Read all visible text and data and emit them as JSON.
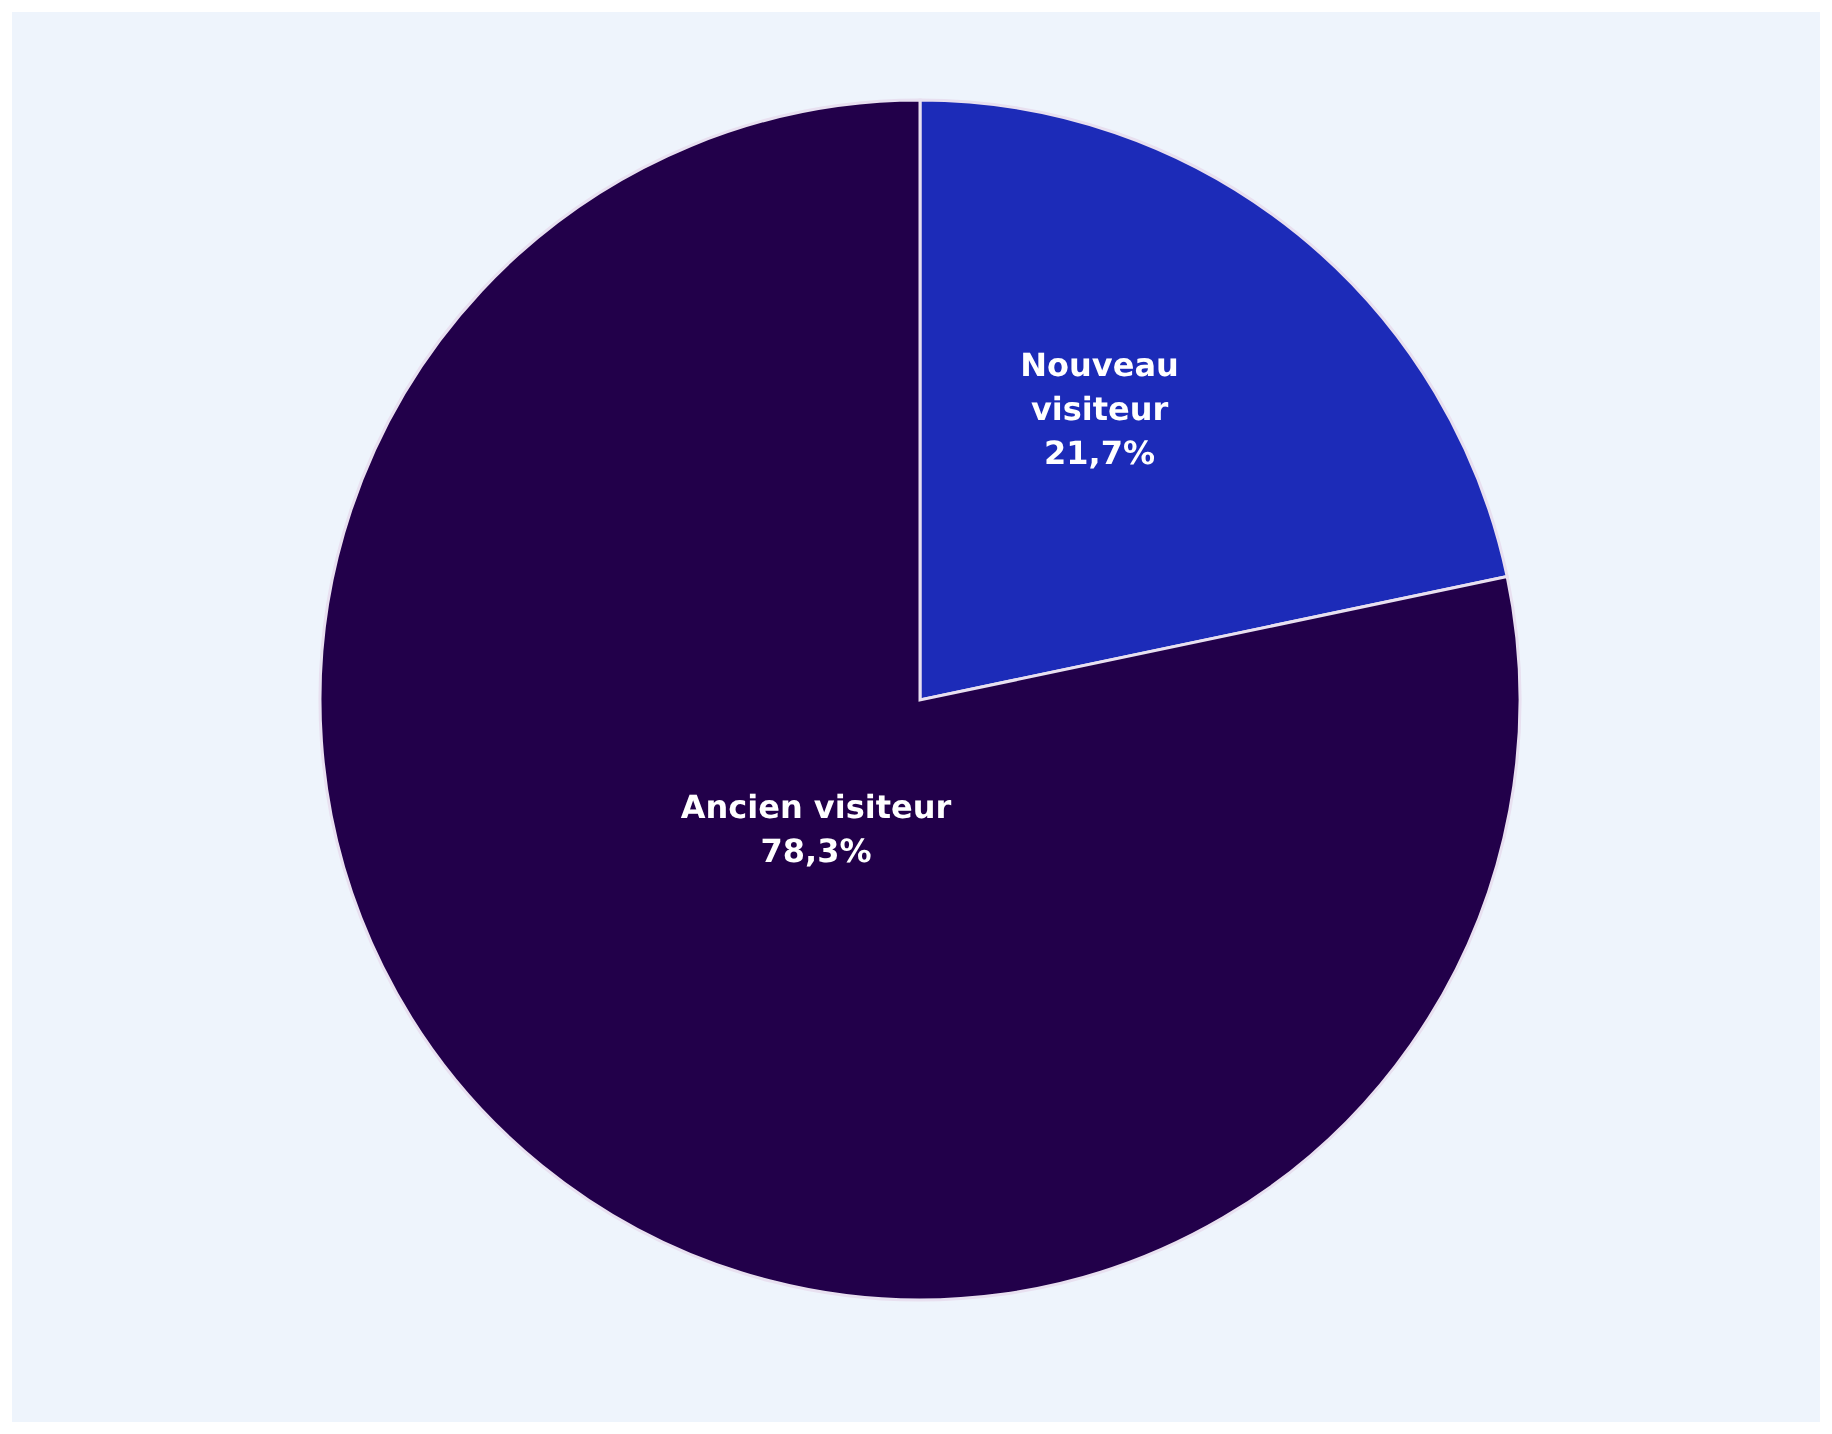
{
  "chart_data": {
    "type": "pie",
    "categories": [
      "Nouveau visiteur",
      "Ancien visiteur"
    ],
    "values": [
      21.7,
      78.3
    ],
    "colors": [
      "#1c2bb8",
      "#22004a"
    ],
    "value_labels": [
      "21,7%",
      "78,3%"
    ]
  }
}
